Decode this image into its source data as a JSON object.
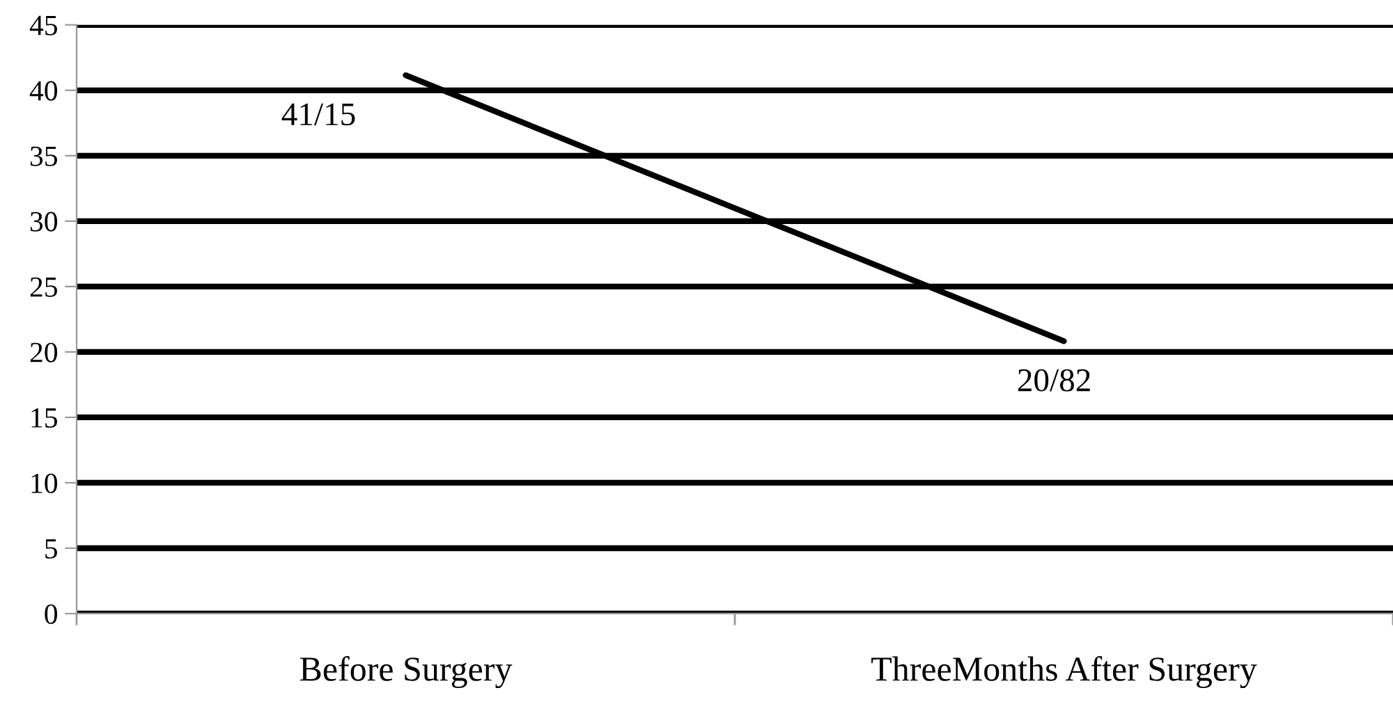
{
  "chart_data": {
    "type": "line",
    "categories": [
      "Before Surgery",
      "ThreeMonths After Surgery"
    ],
    "series": [
      {
        "color": "#000000",
        "values": [
          41.15,
          20.82
        ],
        "value_labels": [
          "41/15",
          "20/82"
        ]
      }
    ],
    "ylim": [
      0,
      45
    ],
    "yticks": [
      0,
      5,
      10,
      15,
      20,
      25,
      30,
      35,
      40,
      45
    ],
    "grid": "y",
    "marker": "none",
    "line_style": "solid"
  }
}
